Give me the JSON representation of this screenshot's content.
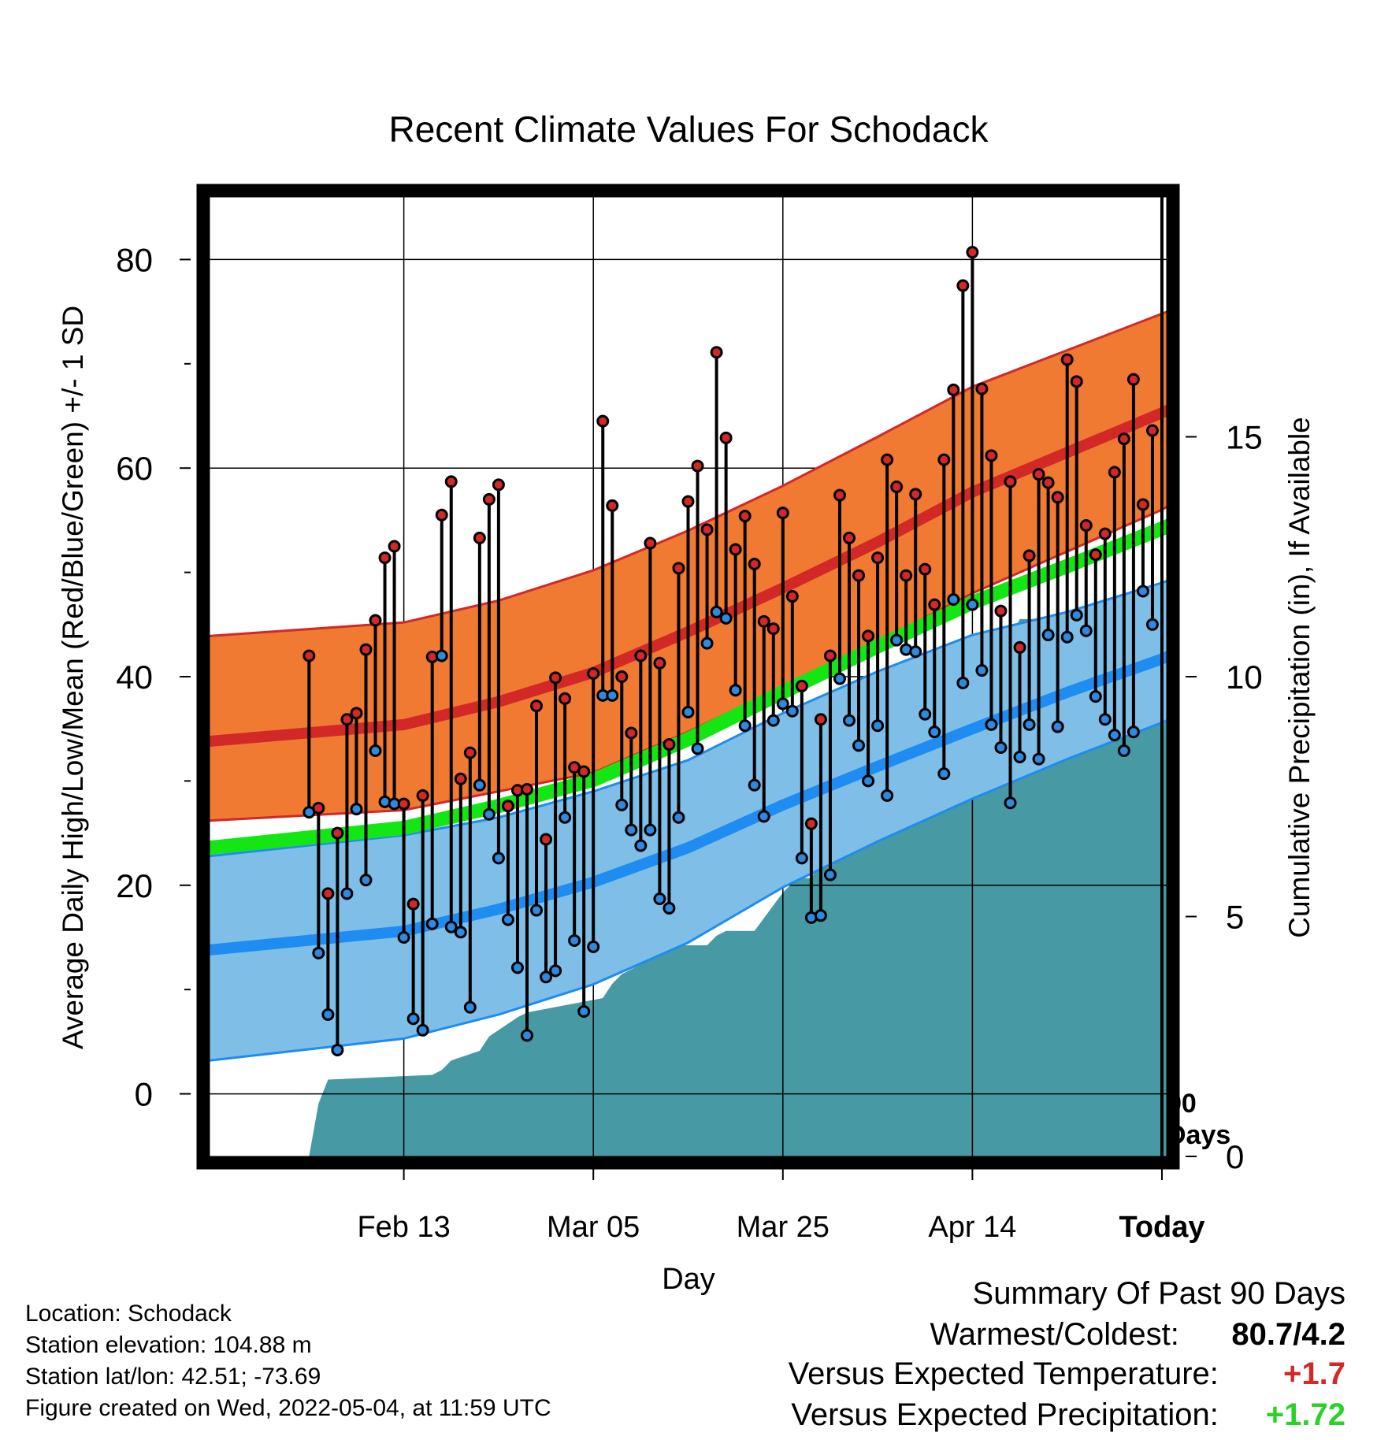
{
  "chart_data": {
    "type": "line",
    "title": "Recent Climate Values For Schodack",
    "xlabel": "Day",
    "ylabel": "Average Daily High/Low/Mean (Red/Blue/Green) +/- 1 SD",
    "y2label": "Cumulative Precipitation (in), If Available",
    "x_tick_labels": [
      "Feb 13",
      "Mar 05",
      "Mar 25",
      "Apr 14",
      "Today"
    ],
    "x_tick_days": [
      10,
      30,
      50,
      70,
      90
    ],
    "today_line_label": [
      "90",
      "Days"
    ],
    "ylim": [
      -6,
      86
    ],
    "yticks": [
      0,
      20,
      40,
      60,
      80
    ],
    "y2lim": [
      0,
      20
    ],
    "y2ticks": [
      0,
      5,
      10,
      15
    ],
    "xlim": [
      -10.5,
      90.5
    ],
    "x_end_day": 99,
    "colors": {
      "high_band": "#f07a32",
      "high_mean": "#d22828",
      "low_band": "#7fbee6",
      "low_mean": "#1e8cf0",
      "mean": "#14e614",
      "precip": "#4799a4",
      "high_point": "#d22828",
      "low_point": "#2d8ae0"
    },
    "normals": {
      "days": [
        0,
        10,
        20,
        30,
        40,
        50,
        60,
        70,
        80,
        90,
        99
      ],
      "high_upper": [
        43.9,
        45.2,
        47.3,
        50.2,
        54.0,
        58.3,
        63.0,
        67.8,
        71.3,
        74.8,
        78.0
      ],
      "high_mean": [
        33.8,
        35.4,
        37.6,
        40.4,
        44.3,
        48.5,
        52.9,
        57.7,
        61.5,
        65.3,
        69.0
      ],
      "high_lower": [
        26.2,
        27.2,
        29.0,
        30.8,
        34.7,
        39.0,
        43.3,
        48.0,
        52.0,
        56.0,
        61.0
      ],
      "mean": [
        23.6,
        25.5,
        27.6,
        30.1,
        34.0,
        38.5,
        42.9,
        47.1,
        50.6,
        54.2,
        57.6
      ],
      "low_upper": [
        22.8,
        24.8,
        26.5,
        29.0,
        32.0,
        36.5,
        40.5,
        44.0,
        46.2,
        49.0,
        52.2
      ],
      "low_mean": [
        13.8,
        15.6,
        17.7,
        20.3,
        23.6,
        27.7,
        31.4,
        35.0,
        38.5,
        41.7,
        45.2
      ],
      "low_lower": [
        3.2,
        5.3,
        7.6,
        10.5,
        14.5,
        19.8,
        24.2,
        28.3,
        32.1,
        35.6,
        39.0
      ]
    },
    "daily": {
      "days": [
        0,
        1,
        2,
        3,
        4,
        5,
        6,
        7,
        8,
        9,
        10,
        11,
        12,
        13,
        14,
        15,
        16,
        17,
        18,
        19,
        20,
        21,
        22,
        23,
        24,
        25,
        26,
        27,
        28,
        29,
        30,
        31,
        32,
        33,
        34,
        35,
        36,
        37,
        38,
        39,
        40,
        41,
        42,
        43,
        44,
        45,
        46,
        47,
        48,
        49,
        50,
        51,
        52,
        53,
        54,
        55,
        56,
        57,
        58,
        59,
        60,
        61,
        62,
        63,
        64,
        65,
        66,
        67,
        68,
        69,
        70,
        71,
        72,
        73,
        74,
        75,
        76,
        77,
        78,
        79,
        80,
        81,
        82,
        83,
        84,
        85,
        86,
        87,
        88,
        89
      ],
      "high": [
        42.0,
        27.4,
        19.2,
        25.0,
        35.9,
        36.5,
        42.6,
        45.4,
        51.4,
        52.5,
        27.8,
        18.2,
        28.6,
        41.9,
        55.5,
        58.7,
        30.2,
        32.7,
        53.3,
        57.0,
        58.4,
        27.6,
        29.1,
        29.2,
        37.2,
        24.4,
        39.9,
        37.9,
        31.3,
        30.9,
        40.3,
        64.5,
        56.4,
        40.0,
        34.6,
        42.0,
        52.8,
        41.3,
        33.5,
        50.4,
        56.8,
        60.2,
        54.1,
        71.1,
        62.9,
        52.2,
        55.4,
        50.8,
        45.3,
        44.6,
        55.7,
        47.7,
        39.1,
        25.9,
        35.9,
        42.0,
        57.4,
        53.3,
        49.7,
        43.9,
        51.4,
        60.8,
        58.2,
        49.7,
        57.5,
        50.3,
        46.9,
        60.8,
        67.5,
        77.5,
        80.7,
        67.6,
        61.2,
        46.3,
        58.7,
        42.8,
        51.6,
        59.4,
        58.6,
        57.2,
        70.4,
        68.3,
        54.5,
        51.7,
        53.7,
        59.6,
        62.8,
        68.5,
        56.5,
        63.6
      ],
      "low": [
        27.0,
        13.5,
        7.6,
        4.2,
        19.2,
        27.3,
        20.5,
        32.9,
        28.0,
        27.8,
        15.0,
        7.2,
        6.1,
        16.3,
        42.0,
        16.0,
        15.5,
        8.3,
        29.6,
        26.8,
        22.6,
        16.7,
        12.1,
        5.6,
        17.6,
        11.2,
        11.8,
        26.5,
        14.7,
        7.9,
        14.1,
        38.2,
        38.2,
        27.7,
        25.3,
        23.8,
        25.3,
        18.7,
        17.8,
        26.5,
        36.6,
        33.1,
        43.2,
        46.2,
        45.6,
        38.7,
        35.3,
        29.6,
        26.6,
        35.8,
        37.4,
        36.7,
        22.6,
        16.9,
        17.1,
        21.0,
        39.8,
        35.8,
        33.4,
        30.0,
        35.3,
        28.6,
        43.5,
        42.6,
        42.4,
        36.4,
        34.7,
        30.7,
        47.4,
        39.4,
        46.9,
        40.6,
        35.4,
        33.2,
        27.9,
        32.3,
        35.4,
        32.1,
        44.0,
        35.2,
        43.8,
        45.9,
        44.4,
        38.1,
        35.9,
        34.4,
        32.9,
        34.7,
        48.2,
        45.0
      ]
    },
    "precip": {
      "days": [
        0,
        1,
        2,
        13,
        14,
        15,
        18,
        19,
        22,
        23,
        31,
        32,
        33,
        35,
        36,
        42,
        43,
        44,
        47,
        50,
        51,
        52,
        53,
        56,
        57,
        58,
        59,
        62,
        63,
        64,
        67,
        70,
        71,
        72,
        73,
        74,
        75,
        76,
        77,
        82,
        83,
        84,
        85,
        90,
        99
      ],
      "cum": [
        0.0,
        1.1,
        1.6,
        1.7,
        1.8,
        2.0,
        2.2,
        2.5,
        2.9,
        3.0,
        3.3,
        3.6,
        3.8,
        4.0,
        4.4,
        4.4,
        4.6,
        4.7,
        4.7,
        5.5,
        5.7,
        5.8,
        5.8,
        6.9,
        7.1,
        7.2,
        7.3,
        7.4,
        9.3,
        9.8,
        10.0,
        10.1,
        10.1,
        10.2,
        10.5,
        10.8,
        11.2,
        11.2,
        11.2,
        11.2,
        11.4,
        11.5,
        11.5,
        11.7,
        11.7
      ]
    }
  },
  "info": {
    "location": "Location: Schodack",
    "elevation": "Station elevation: 104.88 m",
    "latlon": "Station lat/lon: 42.51; -73.69",
    "created": "Figure created on Wed, 2022-05-04, at 11:59 UTC"
  },
  "summary": {
    "title": "Summary Of Past 90 Days",
    "warm_cold_label": "Warmest/Coldest:",
    "warm_cold_value": "80.7/4.2",
    "temp_label": "Versus Expected Temperature:",
    "temp_value": "+1.7",
    "temp_color": "#d22828",
    "precip_label": "Versus Expected Precipitation:",
    "precip_value": "+1.72",
    "precip_color": "#28d228"
  }
}
